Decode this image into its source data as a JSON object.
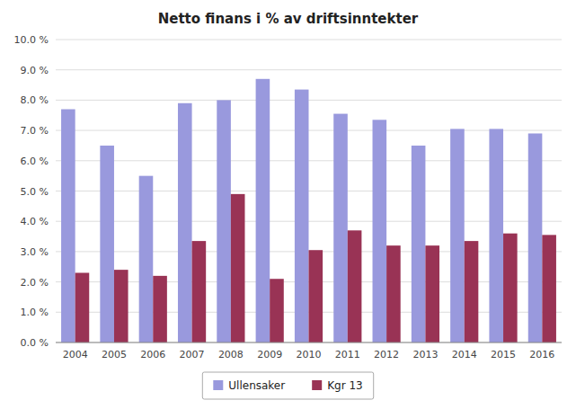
{
  "chart_data": {
    "type": "bar",
    "title": "Netto finans i % av driftsinntekter",
    "categories": [
      "2004",
      "2005",
      "2006",
      "2007",
      "2008",
      "2009",
      "2010",
      "2011",
      "2012",
      "2013",
      "2014",
      "2015",
      "2016"
    ],
    "series": [
      {
        "name": "Ullensaker",
        "color": "#9999DD",
        "values": [
          7.7,
          6.5,
          5.5,
          7.9,
          8.0,
          8.7,
          8.35,
          7.55,
          7.35,
          6.5,
          7.05,
          7.05,
          6.9
        ]
      },
      {
        "name": "Kgr 13",
        "color": "#993355",
        "values": [
          2.3,
          2.4,
          2.2,
          3.35,
          4.9,
          2.1,
          3.05,
          3.7,
          3.2,
          3.2,
          3.35,
          3.6,
          3.55
        ]
      }
    ],
    "ylim": [
      0,
      10.0
    ],
    "yticks": [
      {
        "value": 0.0,
        "label": "0.0 %"
      },
      {
        "value": 1.0,
        "label": "1.0 %"
      },
      {
        "value": 2.0,
        "label": "2.0 %"
      },
      {
        "value": 3.0,
        "label": "3.0 %"
      },
      {
        "value": 4.0,
        "label": "4.0 %"
      },
      {
        "value": 5.0,
        "label": "5.0 %"
      },
      {
        "value": 6.0,
        "label": "6.0 %"
      },
      {
        "value": 7.0,
        "label": "7.0 %"
      },
      {
        "value": 8.0,
        "label": "8.0 %"
      },
      {
        "value": 9.0,
        "label": "9.0 %"
      },
      {
        "value": 10.0,
        "label": "10.0 %"
      }
    ],
    "grid": true,
    "legend": "bottom"
  }
}
